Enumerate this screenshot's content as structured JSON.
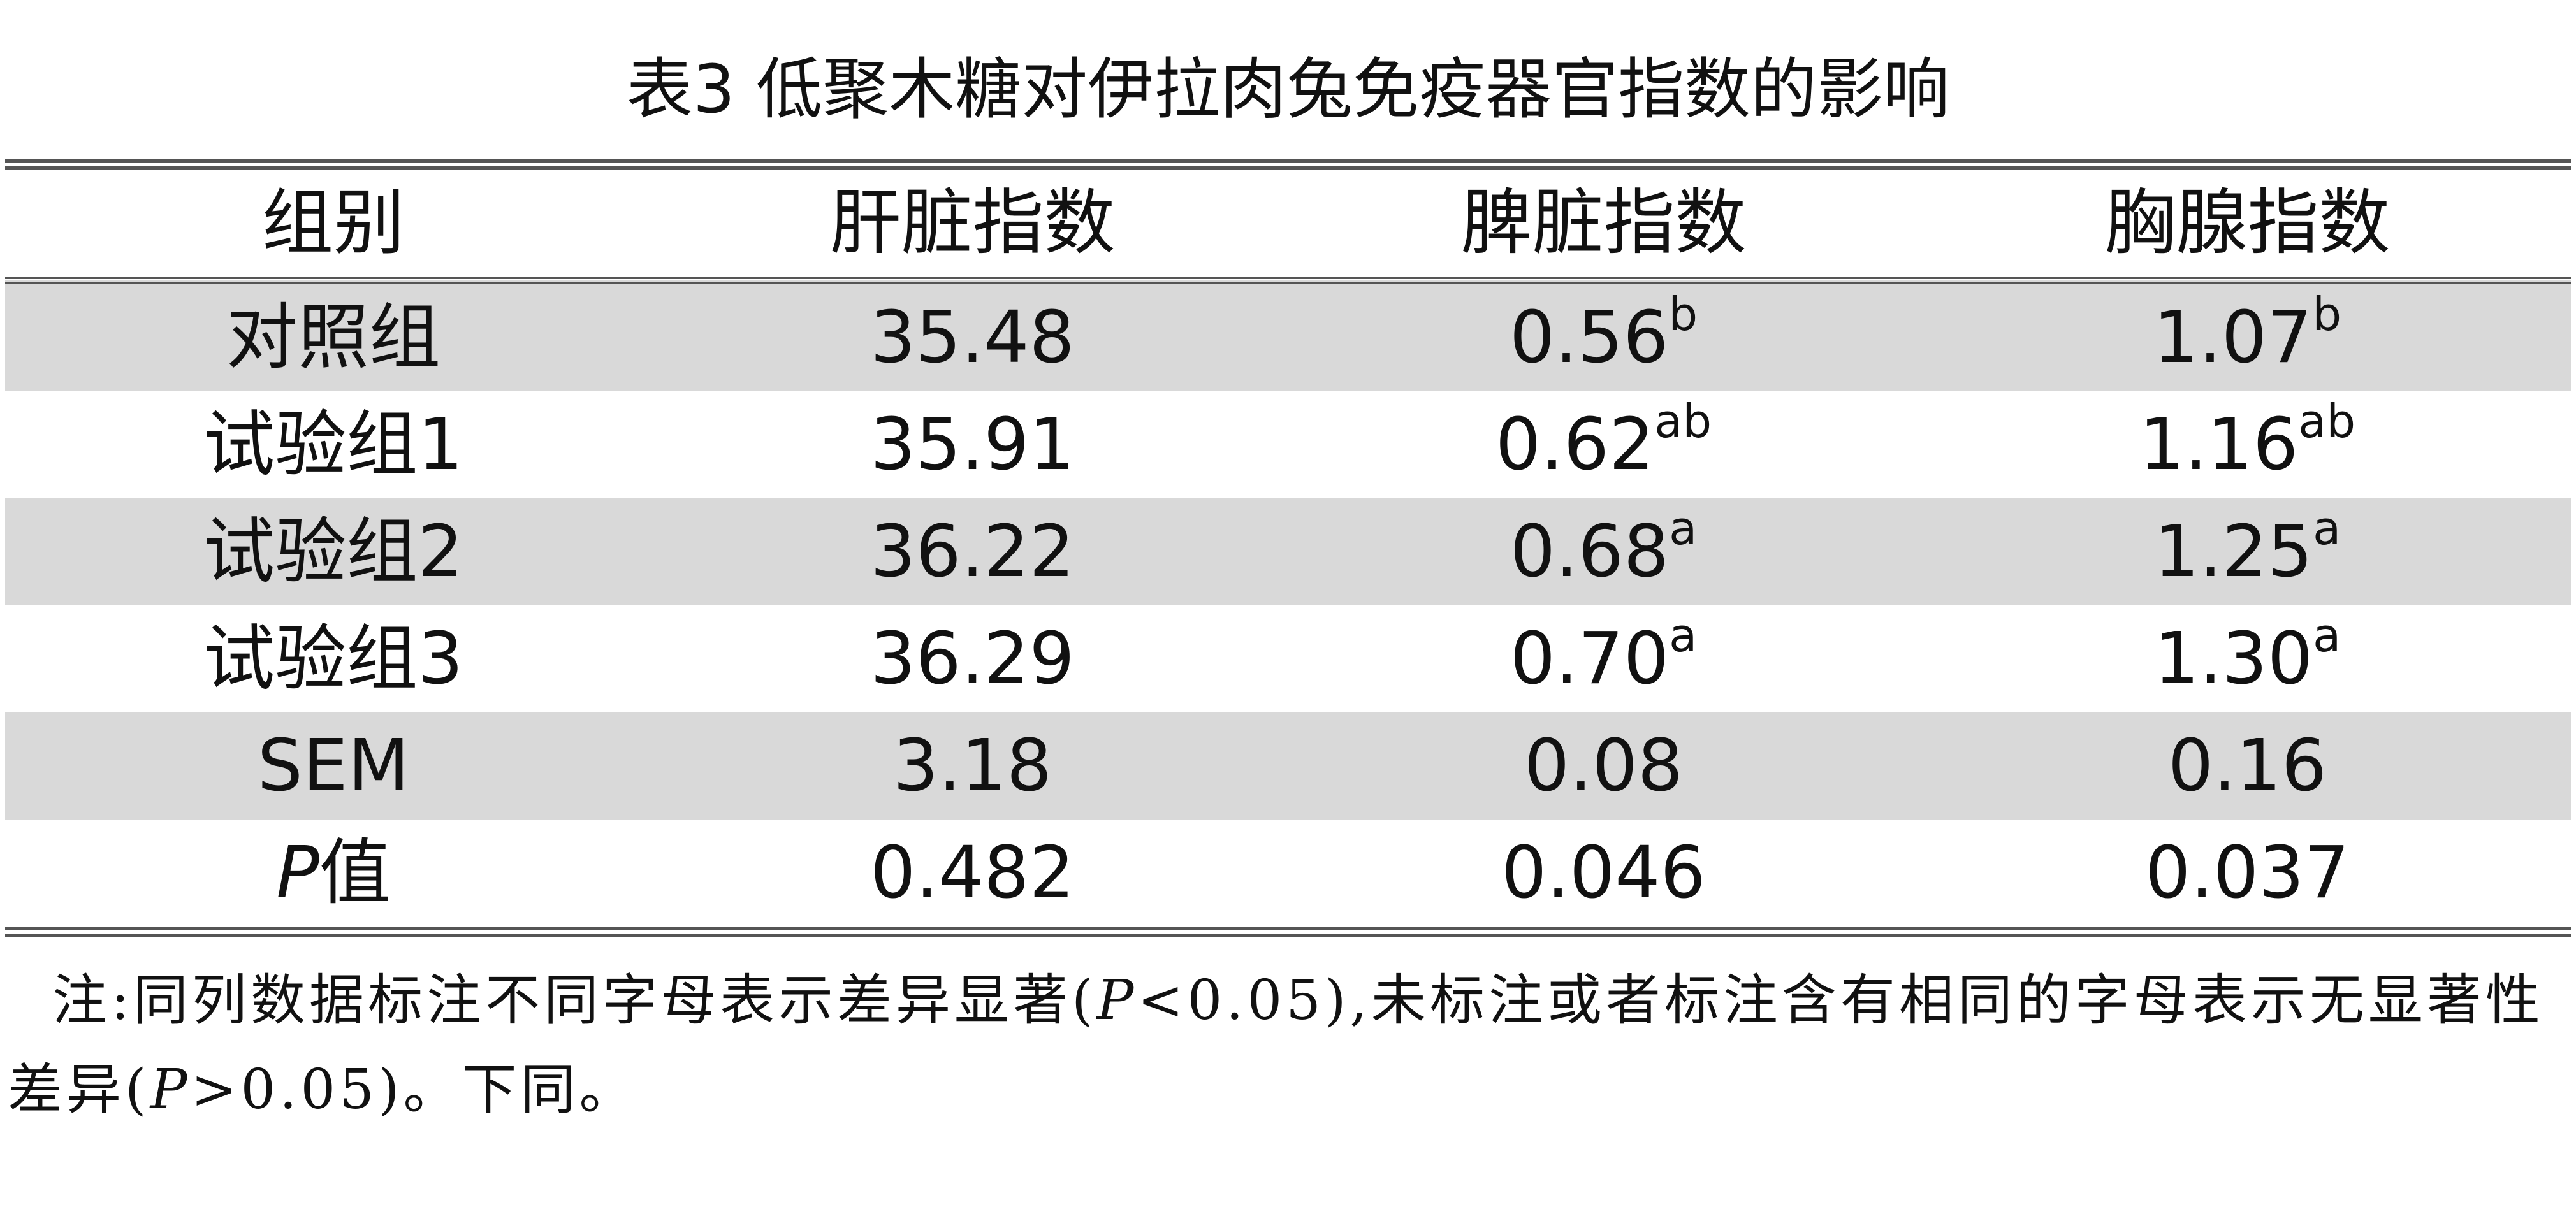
{
  "title": "表3 低聚木糖对伊拉肉兔免疫器官指数的影响",
  "table": {
    "header": [
      "组别",
      "肝脏指数",
      "脾脏指数",
      "胸腺指数"
    ],
    "rows": [
      [
        {
          "text": "对照组"
        },
        {
          "text": "35.48"
        },
        {
          "text": "0.56",
          "sup": "b"
        },
        {
          "text": "1.07",
          "sup": "b"
        }
      ],
      [
        {
          "text": "试验组1"
        },
        {
          "text": "35.91"
        },
        {
          "text": "0.62",
          "sup": "ab"
        },
        {
          "text": "1.16",
          "sup": "ab"
        }
      ],
      [
        {
          "text": "试验组2"
        },
        {
          "text": "36.22"
        },
        {
          "text": "0.68",
          "sup": "a"
        },
        {
          "text": "1.25",
          "sup": "a"
        }
      ],
      [
        {
          "text": "试验组3"
        },
        {
          "text": "36.29"
        },
        {
          "text": "0.70",
          "sup": "a"
        },
        {
          "text": "1.30",
          "sup": "a"
        }
      ],
      [
        {
          "text": "SEM"
        },
        {
          "text": "3.18"
        },
        {
          "text": "0.08"
        },
        {
          "text": "0.16"
        }
      ],
      [
        {
          "italic": "P",
          "text": "值"
        },
        {
          "text": "0.482"
        },
        {
          "text": "0.046"
        },
        {
          "text": "0.037"
        }
      ]
    ]
  },
  "note": [
    "注:同列数据标注不同字母表示差异显著(",
    "P",
    "<0.05),未标注或者标注含有相同的字母表示无显著性差异(",
    "P",
    ">0.05)。下同。"
  ]
}
